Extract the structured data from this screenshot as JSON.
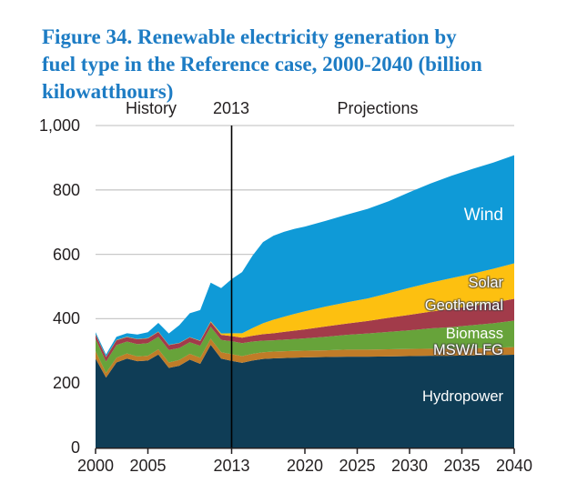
{
  "figure": {
    "title": "Figure 34. Renewable electricity generation by\nfuel type in the Reference case, 2000-2040 (billion\nkilowatthours)",
    "title_color": "#1d7cc4"
  },
  "annotations": {
    "history": "History",
    "divider_year": "2013",
    "projections": "Projections"
  },
  "series_labels": {
    "wind": "Wind",
    "solar": "Solar",
    "geothermal": "Geothermal",
    "biomass": "Biomass",
    "msw_lfg": "MSW/LFG",
    "hydropower": "Hydropower"
  },
  "chart_data": {
    "type": "area",
    "stacked": true,
    "title": "Renewable electricity generation by fuel type in the Reference case, 2000-2040",
    "units": "billion kilowatthours",
    "xlabel": "",
    "ylabel": "",
    "xlim": [
      2000,
      2040
    ],
    "ylim": [
      0,
      1000
    ],
    "grid": "horizontal",
    "gridline_color": "#c9c9c9",
    "axis_color": "#231f20",
    "divider_x": 2013,
    "divider_color": "#000000",
    "legend_position": "in-plot right-aligned labels",
    "x": [
      2000,
      2001,
      2002,
      2003,
      2004,
      2005,
      2006,
      2007,
      2008,
      2009,
      2010,
      2011,
      2012,
      2013,
      2014,
      2015,
      2016,
      2017,
      2018,
      2019,
      2020,
      2022,
      2024,
      2026,
      2028,
      2030,
      2032,
      2034,
      2036,
      2038,
      2040
    ],
    "series": [
      {
        "name": "hydropower",
        "label": "Hydropower",
        "color": "#0f3d56",
        "values": [
          276,
          217,
          264,
          276,
          268,
          270,
          289,
          247,
          254,
          273,
          260,
          319,
          276,
          269,
          263,
          270,
          275,
          277,
          278,
          279,
          280,
          281,
          282,
          282,
          283,
          284,
          285,
          285,
          286,
          287,
          288
        ]
      },
      {
        "name": "msw_lfg",
        "label": "MSW/LFG",
        "color": "#c07c28",
        "values": [
          23,
          15,
          15,
          16,
          15,
          15,
          16,
          17,
          18,
          18,
          19,
          19,
          20,
          21,
          21,
          21,
          21,
          21,
          21,
          21,
          21,
          21,
          22,
          22,
          22,
          22,
          22,
          22,
          22,
          22,
          24
        ]
      },
      {
        "name": "biomass",
        "label": "Biomass",
        "color": "#67a33a",
        "values": [
          38,
          35,
          39,
          37,
          38,
          39,
          39,
          39,
          37,
          36,
          37,
          37,
          38,
          40,
          40,
          38,
          36,
          35,
          36,
          37,
          38,
          42,
          46,
          50,
          54,
          58,
          63,
          67,
          72,
          77,
          82
        ]
      },
      {
        "name": "geothermal",
        "label": "Geothermal",
        "color": "#a23b4a",
        "values": [
          14,
          14,
          15,
          14,
          15,
          15,
          15,
          15,
          15,
          15,
          15,
          15,
          16,
          16,
          17,
          18,
          20,
          22,
          24,
          26,
          28,
          32,
          35,
          39,
          44,
          48,
          52,
          56,
          60,
          64,
          68
        ]
      },
      {
        "name": "solar",
        "label": "Solar",
        "color": "#fdc010",
        "values": [
          1,
          1,
          1,
          1,
          1,
          1,
          1,
          1,
          1,
          1,
          1,
          2,
          4,
          9,
          14,
          24,
          34,
          42,
          47,
          52,
          56,
          62,
          66,
          70,
          76,
          84,
          90,
          96,
          100,
          105,
          110
        ]
      },
      {
        "name": "wind",
        "label": "Wind",
        "color": "#0f9ad7",
        "values": [
          6,
          7,
          10,
          11,
          14,
          18,
          27,
          35,
          55,
          74,
          95,
          120,
          141,
          168,
          190,
          225,
          252,
          261,
          264,
          264,
          263,
          266,
          272,
          278,
          286,
          297,
          308,
          318,
          325,
          330,
          336
        ]
      }
    ],
    "y_ticks": [
      {
        "value": 0,
        "label": "0"
      },
      {
        "value": 200,
        "label": "200"
      },
      {
        "value": 400,
        "label": "400"
      },
      {
        "value": 600,
        "label": "600"
      },
      {
        "value": 800,
        "label": "800"
      },
      {
        "value": 1000,
        "label": "1,000"
      }
    ],
    "x_ticks": [
      {
        "value": 2000,
        "label": "2000"
      },
      {
        "value": 2005,
        "label": "2005"
      },
      {
        "value": 2013,
        "label": "2013"
      },
      {
        "value": 2020,
        "label": "2020"
      },
      {
        "value": 2025,
        "label": "2025"
      },
      {
        "value": 2030,
        "label": "2030"
      },
      {
        "value": 2035,
        "label": "2035"
      },
      {
        "value": 2040,
        "label": "2040"
      }
    ]
  }
}
